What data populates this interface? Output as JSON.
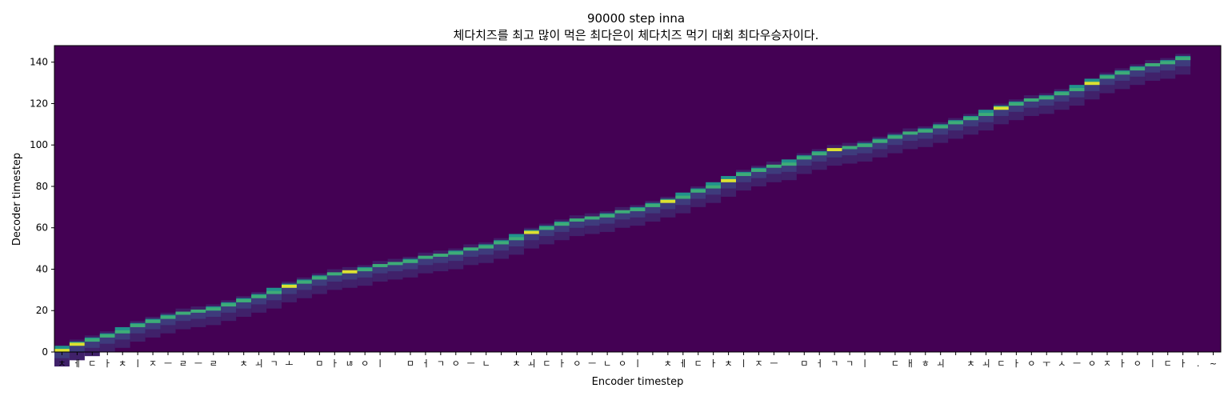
{
  "chart_data": {
    "type": "heatmap",
    "title": "90000 step inna",
    "subtitle": "체다치즈를 최고 많이 먹은 최다은이 체다치즈 먹기 대회 최다우승자이다.",
    "xlabel": "Encoder timestep",
    "ylabel": "Decoder timestep",
    "x_tick_labels": [
      "ㅊ",
      "ㅔ",
      "ㄷ",
      "ㅏ",
      "ㅊ",
      "ㅣ",
      "ㅈ",
      "ㅡ",
      "ㄹ",
      "ㅡ",
      "ㄹ",
      " ",
      "ㅊ",
      "ㅚ",
      "ㄱ",
      "ㅗ",
      " ",
      "ㅁ",
      "ㅏ",
      "ㄶ",
      "ㅇ",
      "ㅣ",
      " ",
      "ㅁ",
      "ㅓ",
      "ㄱ",
      "ㅇ",
      "ㅡ",
      "ㄴ",
      " ",
      "ㅊ",
      "ㅚ",
      "ㄷ",
      "ㅏ",
      "ㅇ",
      "ㅡ",
      "ㄴ",
      "ㅇ",
      "ㅣ",
      " ",
      "ㅊ",
      "ㅔ",
      "ㄷ",
      "ㅏ",
      "ㅊ",
      "ㅣ",
      "ㅈ",
      "ㅡ",
      " ",
      "ㅁ",
      "ㅓ",
      "ㄱ",
      "ㄱ",
      "ㅣ",
      " ",
      "ㄷ",
      "ㅐ",
      "ㅎ",
      "ㅚ",
      " ",
      "ㅊ",
      "ㅚ",
      "ㄷ",
      "ㅏ",
      "ㅇ",
      "ㅜ",
      "ㅅ",
      "ㅡ",
      "ㅇ",
      "ㅈ",
      "ㅏ",
      "ㅇ",
      "ㅣ",
      "ㄷ",
      "ㅏ",
      ".",
      "~"
    ],
    "y_ticks": [
      0,
      20,
      40,
      60,
      80,
      100,
      120,
      140
    ],
    "xlim": [
      0,
      77
    ],
    "ylim": [
      0,
      148
    ],
    "colormap": "viridis",
    "alignment_path": [
      [
        0,
        0
      ],
      [
        1,
        3
      ],
      [
        2,
        5
      ],
      [
        3,
        7
      ],
      [
        4,
        9
      ],
      [
        5,
        12
      ],
      [
        6,
        14
      ],
      [
        7,
        16
      ],
      [
        8,
        18
      ],
      [
        9,
        19
      ],
      [
        10,
        20
      ],
      [
        11,
        22
      ],
      [
        12,
        24
      ],
      [
        13,
        26
      ],
      [
        14,
        28
      ],
      [
        15,
        31
      ],
      [
        16,
        33
      ],
      [
        17,
        35
      ],
      [
        18,
        37
      ],
      [
        19,
        38
      ],
      [
        20,
        39
      ],
      [
        21,
        41
      ],
      [
        22,
        42
      ],
      [
        23,
        43
      ],
      [
        24,
        45
      ],
      [
        25,
        46
      ],
      [
        26,
        47
      ],
      [
        27,
        49
      ],
      [
        28,
        50
      ],
      [
        29,
        52
      ],
      [
        30,
        54
      ],
      [
        31,
        57
      ],
      [
        32,
        59
      ],
      [
        33,
        61
      ],
      [
        34,
        63
      ],
      [
        35,
        64
      ],
      [
        36,
        65
      ],
      [
        37,
        67
      ],
      [
        38,
        68
      ],
      [
        39,
        70
      ],
      [
        40,
        72
      ],
      [
        41,
        74
      ],
      [
        42,
        77
      ],
      [
        43,
        79
      ],
      [
        44,
        82
      ],
      [
        45,
        85
      ],
      [
        46,
        87
      ],
      [
        47,
        89
      ],
      [
        48,
        90
      ],
      [
        49,
        93
      ],
      [
        50,
        95
      ],
      [
        51,
        97
      ],
      [
        52,
        98
      ],
      [
        53,
        99
      ],
      [
        54,
        101
      ],
      [
        55,
        103
      ],
      [
        56,
        105
      ],
      [
        57,
        106
      ],
      [
        58,
        108
      ],
      [
        59,
        110
      ],
      [
        60,
        112
      ],
      [
        61,
        114
      ],
      [
        62,
        117
      ],
      [
        63,
        119
      ],
      [
        64,
        121
      ],
      [
        65,
        122
      ],
      [
        66,
        124
      ],
      [
        67,
        126
      ],
      [
        68,
        129
      ],
      [
        69,
        132
      ],
      [
        70,
        134
      ],
      [
        71,
        136
      ],
      [
        72,
        138
      ],
      [
        73,
        139
      ],
      [
        74,
        141
      ]
    ],
    "peak_positions": [
      0,
      1,
      15,
      19,
      31,
      40,
      44,
      51,
      62,
      68
    ]
  }
}
